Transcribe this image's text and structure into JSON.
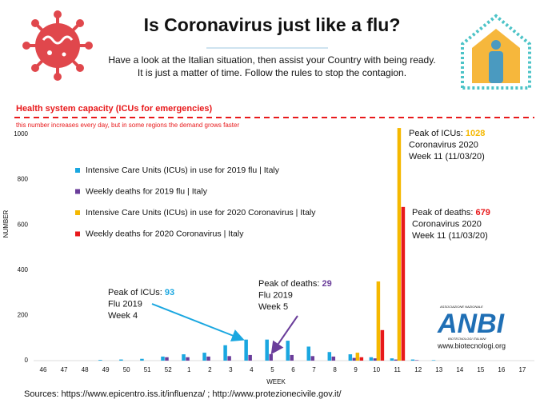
{
  "chart_data": {
    "type": "bar",
    "title": "Is Coronavirus just like a flu?",
    "subtitle": [
      "Have a look at the Italian situation, then assist your Country with being ready.",
      "It is just a matter of time. Follow the rules to stop the contagion."
    ],
    "capacity_label": "Health system capacity (ICUs for emergencies)",
    "capacity_note": "this number increases every day, but in some regions the demand grows faster",
    "ylabel": "NUMBER",
    "xlabel": "WEEK",
    "categories": [
      "46",
      "47",
      "48",
      "49",
      "50",
      "51",
      "52",
      "1",
      "2",
      "3",
      "4",
      "5",
      "6",
      "7",
      "8",
      "9",
      "10",
      "11",
      "12",
      "13",
      "14",
      "15",
      "16",
      "17"
    ],
    "series": [
      {
        "name": "Intensive Care Units (ICUs) in use for 2019 flu | Italy",
        "color": "#1aa7e0",
        "values": [
          0,
          0,
          0,
          3,
          5,
          8,
          18,
          28,
          35,
          68,
          93,
          93,
          88,
          62,
          38,
          28,
          15,
          10,
          5,
          2,
          0,
          0,
          0,
          0
        ]
      },
      {
        "name": "Weekly deaths for 2019 flu | Italy",
        "color": "#6a3d9a",
        "values": [
          0,
          0,
          0,
          0,
          0,
          0,
          15,
          15,
          18,
          20,
          25,
          29,
          25,
          20,
          18,
          12,
          10,
          5,
          2,
          0,
          0,
          0,
          0,
          0
        ]
      },
      {
        "name": "Intensive Care Units (ICUs) in use for 2020 Coronavirus | Italy",
        "color": "#f5b800",
        "values": [
          null,
          null,
          null,
          null,
          null,
          null,
          null,
          null,
          null,
          null,
          null,
          null,
          null,
          null,
          null,
          35,
          350,
          1028,
          null,
          null,
          null,
          null,
          null,
          null
        ]
      },
      {
        "name": "Weekly deaths for 2020 Coronavirus | Italy",
        "color": "#e8191b",
        "values": [
          null,
          null,
          null,
          null,
          null,
          null,
          null,
          null,
          null,
          null,
          null,
          null,
          null,
          null,
          null,
          15,
          135,
          679,
          null,
          null,
          null,
          null,
          null,
          null
        ]
      }
    ],
    "ylim": [
      0,
      1000
    ],
    "yticks": [
      0,
      200,
      400,
      600,
      800,
      1000
    ],
    "grid": false,
    "legend": "left",
    "annotations": [
      {
        "label": "Peak of ICUs: ",
        "value": 93,
        "value_color": "#1aa7e0",
        "lines": [
          "Flu 2019",
          "Week 4"
        ]
      },
      {
        "label": "Peak of deaths: ",
        "value": 29,
        "value_color": "#6a3d9a",
        "lines": [
          "Flu 2019",
          "Week 5"
        ]
      },
      {
        "label": "Peak of ICUs: ",
        "value": 1028,
        "value_color": "#f5b800",
        "lines": [
          "Coronavirus 2020",
          "Week 11 (11/03/20)"
        ]
      },
      {
        "label": "Peak of deaths: ",
        "value": 679,
        "value_color": "#e8191b",
        "lines": [
          "Coronavirus 2020",
          "Week 11 (11/03/20)"
        ]
      }
    ],
    "logo": {
      "top": "ASSOCIAZIONE NAZIONALE",
      "mark": "ANBI",
      "bottom": "BIOTECNOLOGI ITALIANI",
      "url": "www.biotecnologi.org"
    },
    "sources": "Sources:  https://www.epicentro.iss.it/influenza/ ; http://www.protezionecivile.gov.it/"
  }
}
